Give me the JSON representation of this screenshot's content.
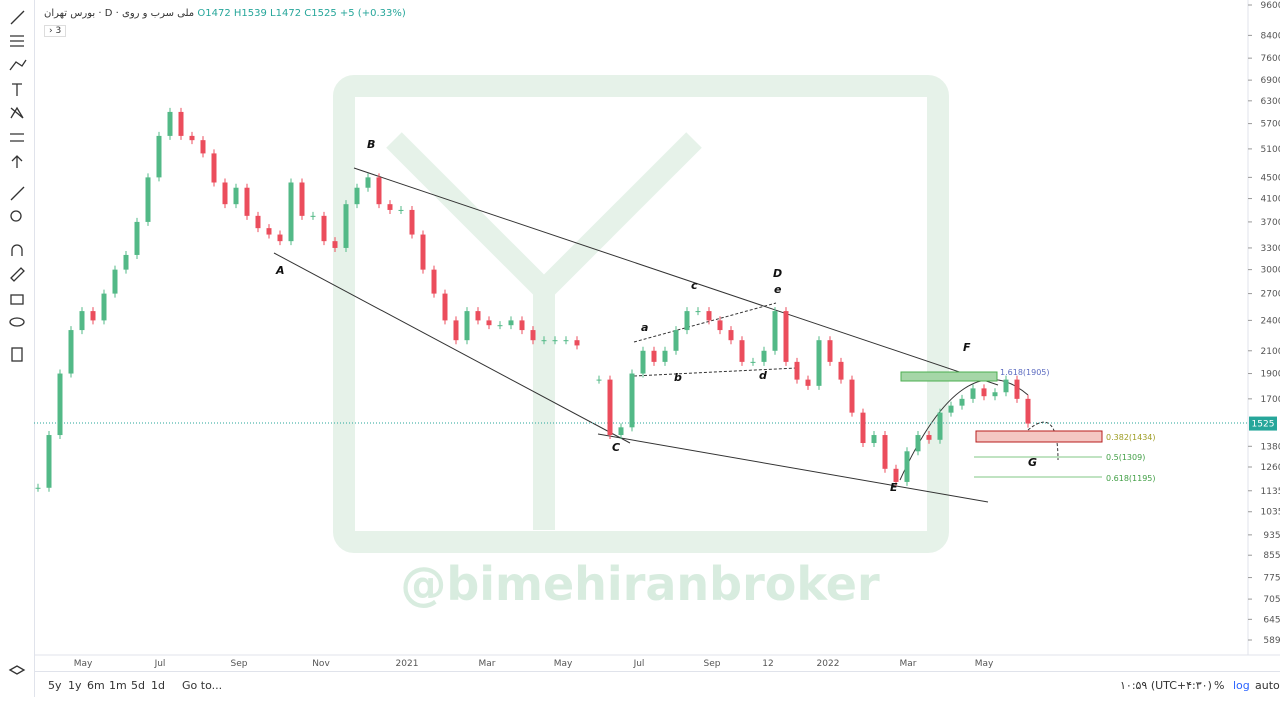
{
  "header": {
    "symbol": "ملی سرب و روی",
    "interval": "D",
    "exchange": "بورس تهران",
    "open": "O1472",
    "high": "H1539",
    "low": "L1472",
    "close": "C1525",
    "change": "+5 (+0.33%)",
    "indicators": "3"
  },
  "price_axis": {
    "scale": "log",
    "ticks": [
      9600,
      8400,
      7600,
      6900,
      6300,
      5700,
      5100,
      4500,
      4100,
      3700,
      3300,
      3000,
      2700,
      2400,
      2100,
      1900,
      1700,
      1380,
      1260,
      1135,
      1035,
      935,
      855,
      775,
      705,
      645,
      589
    ],
    "last": 1525
  },
  "time_axis": [
    "May",
    "Jul",
    "Sep",
    "Nov",
    "2021",
    "Mar",
    "May",
    "Jul",
    "Sep",
    "12",
    "2022",
    "Mar",
    "May"
  ],
  "price_path": [
    1150,
    1450,
    1900,
    2300,
    2500,
    2400,
    2700,
    3000,
    3200,
    3700,
    4500,
    5400,
    6000,
    5400,
    5300,
    5000,
    4400,
    4000,
    4300,
    3800,
    3600,
    3500,
    3400,
    4400,
    3800,
    3800,
    3400,
    3300,
    4000,
    4300,
    4500,
    4000,
    3900,
    3900,
    3500,
    3000,
    2700,
    2400,
    2200,
    2500,
    2400,
    2350,
    2350,
    2400,
    2300,
    2200,
    2200,
    2200,
    2200,
    2150,
    null,
    1850,
    1450,
    1500,
    1900,
    2100,
    2000,
    2100,
    2300,
    2500,
    2500,
    2400,
    2300,
    2200,
    2000,
    2000,
    2100,
    2500,
    2000,
    1850,
    1800,
    2200,
    2000,
    1850,
    1600,
    1400,
    1450,
    1250,
    1180,
    1350,
    1450,
    1420,
    1600,
    1650,
    1700,
    1780,
    1720,
    1750,
    1850,
    1700,
    1525
  ],
  "waves": [
    "A",
    "B",
    "C",
    "D",
    "E",
    "F",
    "G",
    "a",
    "b",
    "c",
    "d",
    "e"
  ],
  "fib_levels": [
    "1.618(1905)",
    "0.382(1434)",
    "0.5(1309)",
    "0.618(1195)"
  ],
  "watermark": "@bimehiranbroker",
  "bottom_bar": {
    "ranges": [
      "5y",
      "1y",
      "6m",
      "1m",
      "5d",
      "1d"
    ],
    "goto": "Go to...",
    "clock": "۱۰:۵۹ (UTC+۴:۳۰)",
    "percent": "%",
    "log": "log",
    "auto": "auto"
  }
}
